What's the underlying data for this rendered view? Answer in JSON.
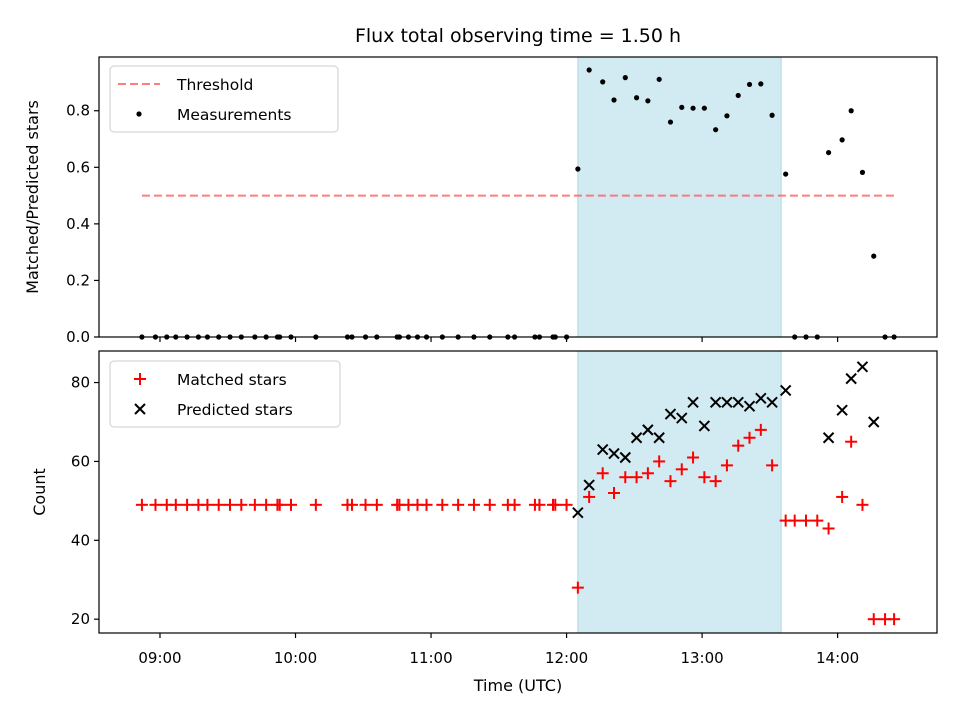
{
  "chart_data": {
    "title": "Flux total observing time = 1.50 h",
    "xlabel": "Time (UTC)",
    "x_ticks": [
      "09:00",
      "10:00",
      "11:00",
      "12:00",
      "13:00",
      "14:00"
    ],
    "xlim": [
      "08:33",
      "14:44"
    ],
    "shaded_interval": [
      "12:05",
      "13:35"
    ],
    "shade_color": "#add8e6",
    "panels": [
      {
        "type": "scatter",
        "ylabel": "Matched/Predicted stars",
        "ylim": [
          0,
          0.99
        ],
        "y_ticks": [
          0.0,
          0.2,
          0.4,
          0.6,
          0.8
        ],
        "legend_position": "upper-left",
        "threshold": {
          "name": "Threshold",
          "value": 0.5,
          "x_range": [
            "08:52",
            "14:25"
          ],
          "color": "#ff6666"
        },
        "series": [
          {
            "name": "Measurements",
            "marker": "dot",
            "color": "#000000",
            "points": [
              [
                "08:52",
                0.0
              ],
              [
                "08:58",
                0.0
              ],
              [
                "09:03",
                0.0
              ],
              [
                "09:07",
                0.0
              ],
              [
                "09:12",
                0.0
              ],
              [
                "09:17",
                0.0
              ],
              [
                "09:21",
                0.0
              ],
              [
                "09:26",
                0.0
              ],
              [
                "09:31",
                0.0
              ],
              [
                "09:36",
                0.0
              ],
              [
                "09:42",
                0.0
              ],
              [
                "09:47",
                0.0
              ],
              [
                "09:52",
                0.0
              ],
              [
                "09:53",
                0.0
              ],
              [
                "09:58",
                0.0
              ],
              [
                "10:09",
                0.0
              ],
              [
                "10:23",
                0.0
              ],
              [
                "10:25",
                0.0
              ],
              [
                "10:31",
                0.0
              ],
              [
                "10:36",
                0.0
              ],
              [
                "10:45",
                0.0
              ],
              [
                "10:46",
                0.0
              ],
              [
                "10:50",
                0.0
              ],
              [
                "10:54",
                0.0
              ],
              [
                "10:58",
                0.0
              ],
              [
                "11:05",
                0.0
              ],
              [
                "11:12",
                0.0
              ],
              [
                "11:19",
                0.0
              ],
              [
                "11:26",
                0.0
              ],
              [
                "11:34",
                0.0
              ],
              [
                "11:37",
                0.0
              ],
              [
                "11:46",
                0.0
              ],
              [
                "11:48",
                0.0
              ],
              [
                "11:54",
                0.0
              ],
              [
                "11:55",
                0.0
              ],
              [
                "12:00",
                0.0
              ],
              [
                "12:05",
                0.594
              ],
              [
                "12:10",
                0.944
              ],
              [
                "12:16",
                0.902
              ],
              [
                "12:21",
                0.838
              ],
              [
                "12:26",
                0.917
              ],
              [
                "12:31",
                0.846
              ],
              [
                "12:36",
                0.835
              ],
              [
                "12:41",
                0.911
              ],
              [
                "12:46",
                0.76
              ],
              [
                "12:51",
                0.812
              ],
              [
                "12:56",
                0.809
              ],
              [
                "13:01",
                0.809
              ],
              [
                "13:06",
                0.733
              ],
              [
                "13:11",
                0.782
              ],
              [
                "13:16",
                0.854
              ],
              [
                "13:21",
                0.893
              ],
              [
                "13:26",
                0.895
              ],
              [
                "13:31",
                0.784
              ],
              [
                "13:37",
                0.576
              ],
              [
                "13:41",
                0.0
              ],
              [
                "13:46",
                0.0
              ],
              [
                "13:51",
                0.0
              ],
              [
                "13:56",
                0.652
              ],
              [
                "14:02",
                0.697
              ],
              [
                "14:06",
                0.8
              ],
              [
                "14:11",
                0.582
              ],
              [
                "14:16",
                0.286
              ],
              [
                "14:21",
                0.0
              ],
              [
                "14:25",
                0.0
              ]
            ]
          }
        ]
      },
      {
        "type": "scatter",
        "ylabel": "Count",
        "ylim": [
          16.5,
          88
        ],
        "y_ticks": [
          20,
          40,
          60,
          80
        ],
        "legend_position": "upper-left",
        "series": [
          {
            "name": "Matched stars",
            "marker": "plus",
            "color": "#ff0000",
            "points": [
              [
                "08:52",
                49
              ],
              [
                "08:58",
                49
              ],
              [
                "09:03",
                49
              ],
              [
                "09:07",
                49
              ],
              [
                "09:12",
                49
              ],
              [
                "09:17",
                49
              ],
              [
                "09:21",
                49
              ],
              [
                "09:26",
                49
              ],
              [
                "09:31",
                49
              ],
              [
                "09:36",
                49
              ],
              [
                "09:42",
                49
              ],
              [
                "09:47",
                49
              ],
              [
                "09:52",
                49
              ],
              [
                "09:53",
                49
              ],
              [
                "09:58",
                49
              ],
              [
                "10:09",
                49
              ],
              [
                "10:23",
                49
              ],
              [
                "10:25",
                49
              ],
              [
                "10:31",
                49
              ],
              [
                "10:36",
                49
              ],
              [
                "10:45",
                49
              ],
              [
                "10:46",
                49
              ],
              [
                "10:50",
                49
              ],
              [
                "10:54",
                49
              ],
              [
                "10:58",
                49
              ],
              [
                "11:05",
                49
              ],
              [
                "11:12",
                49
              ],
              [
                "11:19",
                49
              ],
              [
                "11:26",
                49
              ],
              [
                "11:34",
                49
              ],
              [
                "11:37",
                49
              ],
              [
                "11:46",
                49
              ],
              [
                "11:48",
                49
              ],
              [
                "11:54",
                49
              ],
              [
                "11:55",
                49
              ],
              [
                "12:00",
                49
              ],
              [
                "12:05",
                28
              ],
              [
                "12:10",
                51
              ],
              [
                "12:16",
                57
              ],
              [
                "12:21",
                52
              ],
              [
                "12:26",
                56
              ],
              [
                "12:31",
                56
              ],
              [
                "12:36",
                57
              ],
              [
                "12:41",
                60
              ],
              [
                "12:46",
                55
              ],
              [
                "12:51",
                58
              ],
              [
                "12:56",
                61
              ],
              [
                "13:01",
                56
              ],
              [
                "13:06",
                55
              ],
              [
                "13:11",
                59
              ],
              [
                "13:16",
                64
              ],
              [
                "13:21",
                66
              ],
              [
                "13:26",
                68
              ],
              [
                "13:31",
                59
              ],
              [
                "13:37",
                45
              ],
              [
                "13:41",
                45
              ],
              [
                "13:46",
                45
              ],
              [
                "13:51",
                45
              ],
              [
                "13:56",
                43
              ],
              [
                "14:02",
                51
              ],
              [
                "14:06",
                65
              ],
              [
                "14:11",
                49
              ],
              [
                "14:16",
                20
              ],
              [
                "14:21",
                20
              ],
              [
                "14:25",
                20
              ]
            ]
          },
          {
            "name": "Predicted stars",
            "marker": "x",
            "color": "#000000",
            "points": [
              [
                "12:05",
                47
              ],
              [
                "12:10",
                54
              ],
              [
                "12:16",
                63
              ],
              [
                "12:21",
                62
              ],
              [
                "12:26",
                61
              ],
              [
                "12:31",
                66
              ],
              [
                "12:36",
                68
              ],
              [
                "12:41",
                66
              ],
              [
                "12:46",
                72
              ],
              [
                "12:51",
                71
              ],
              [
                "12:56",
                75
              ],
              [
                "13:01",
                69
              ],
              [
                "13:06",
                75
              ],
              [
                "13:11",
                75
              ],
              [
                "13:16",
                75
              ],
              [
                "13:21",
                74
              ],
              [
                "13:26",
                76
              ],
              [
                "13:31",
                75
              ],
              [
                "13:37",
                78
              ],
              [
                "13:56",
                66
              ],
              [
                "14:02",
                73
              ],
              [
                "14:06",
                81
              ],
              [
                "14:11",
                84
              ],
              [
                "14:16",
                70
              ]
            ]
          }
        ]
      }
    ]
  }
}
